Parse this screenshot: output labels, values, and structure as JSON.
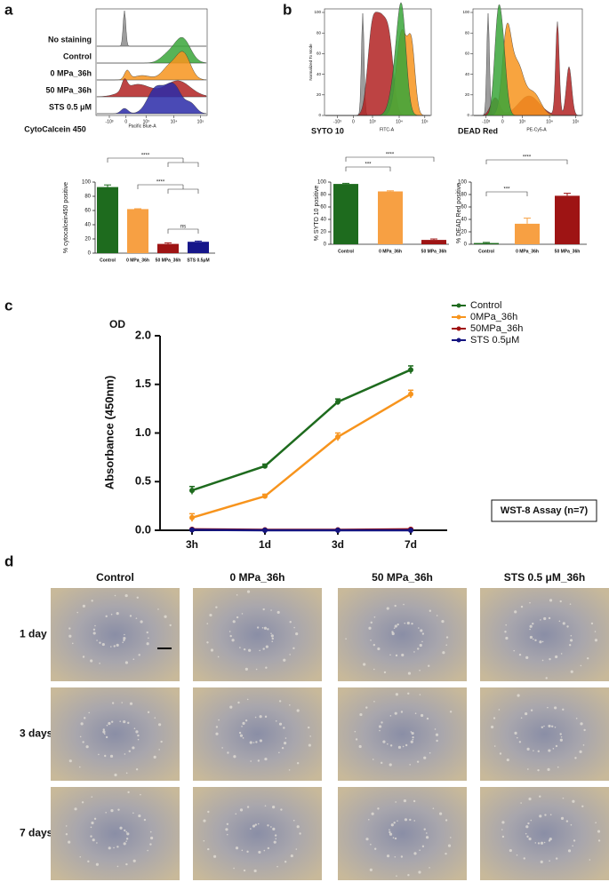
{
  "panel_labels": [
    "a",
    "b",
    "c",
    "d"
  ],
  "flow_plots": [
    {
      "marker": "CytoCalcein 450",
      "x_label": "Pacific Blue-A",
      "xticks": [
        "-10³",
        "0",
        "10³",
        "10⁴",
        "10⁵"
      ],
      "rows": [
        "No staining",
        "Control",
        "0 MPa_36h",
        "50 MPa_36h",
        "STS 0.5 μM"
      ]
    },
    {
      "marker": "SYTO 10",
      "x_label": "FITC-A",
      "y_label": "Normalized To Mode",
      "xticks": [
        "-10³",
        "0",
        "10³",
        "10⁴",
        "10⁵"
      ],
      "ylim": [
        0,
        100
      ],
      "yticks": [
        0,
        20,
        40,
        60,
        80,
        100
      ]
    },
    {
      "marker": "DEAD Red",
      "x_label": "PE-Cy5-A",
      "xticks": [
        "-10³",
        "0",
        "10³",
        "10⁴",
        "10⁵"
      ],
      "ylim": [
        0,
        100
      ],
      "yticks": [
        0,
        20,
        40,
        60,
        80,
        100
      ]
    }
  ],
  "chart_data": [
    {
      "type": "bar",
      "y_label": "% cytocalcein450 positive",
      "categories": [
        "Control",
        "0 MPa_36h",
        "50 MPa_36h",
        "STS 0.5μM"
      ],
      "values": [
        93,
        62,
        13,
        16
      ],
      "errors": [
        3,
        0.5,
        1.5,
        1
      ],
      "colors": [
        "#1e6b1e",
        "#f7a043",
        "#9e1414",
        "#16168a"
      ],
      "ylim": [
        0,
        100
      ],
      "yticks": [
        0,
        20,
        40,
        60,
        80,
        100
      ],
      "annotations": [
        "****",
        "****",
        "ns"
      ]
    },
    {
      "type": "bar",
      "y_label": "% SYTO 10 positive",
      "categories": [
        "Control",
        "0 MPa_36h",
        "50 MPa_36h"
      ],
      "values": [
        97,
        85,
        7
      ],
      "errors": [
        1,
        1,
        1.5
      ],
      "colors": [
        "#1e6b1e",
        "#f7a043",
        "#9e1414"
      ],
      "ylim": [
        0,
        100
      ],
      "yticks": [
        0,
        20,
        40,
        60,
        80,
        100
      ],
      "annotations": [
        "***",
        "****"
      ]
    },
    {
      "type": "bar",
      "y_label": "% DEAD Red positive",
      "categories": [
        "Control",
        "0 MPa_36h",
        "50 MPa_36h"
      ],
      "values": [
        2,
        33,
        78
      ],
      "errors": [
        1,
        9,
        4
      ],
      "colors": [
        "#1e6b1e",
        "#f7a043",
        "#9e1414"
      ],
      "ylim": [
        0,
        100
      ],
      "yticks": [
        0,
        20,
        40,
        60,
        80,
        100
      ],
      "annotations": [
        "***",
        "****"
      ]
    },
    {
      "type": "line",
      "y_unit": "OD",
      "y_label": "Absorbance (450nm)",
      "categories": [
        "3h",
        "1d",
        "3d",
        "7d"
      ],
      "series": [
        {
          "name": "Control",
          "color": "#1e6b1e",
          "values": [
            0.41,
            0.66,
            1.32,
            1.65
          ],
          "errors": [
            0.04,
            0.02,
            0.03,
            0.04
          ]
        },
        {
          "name": "0MPa_36h",
          "color": "#f7941d",
          "values": [
            0.13,
            0.35,
            0.96,
            1.4
          ],
          "errors": [
            0.04,
            0.02,
            0.04,
            0.04
          ]
        },
        {
          "name": "50MPa_36h",
          "color": "#a01010",
          "values": [
            0.01,
            0.005,
            0.005,
            0.01
          ],
          "errors": [
            0.005,
            0.005,
            0.005,
            0.005
          ]
        },
        {
          "name": "STS 0.5μM",
          "color": "#141480",
          "values": [
            0.005,
            0,
            0,
            0
          ],
          "errors": [
            0.003,
            0.003,
            0.003,
            0.003
          ]
        }
      ],
      "ylim": [
        0,
        2
      ],
      "yticks": [
        {
          "value": 0,
          "label": "0.0"
        },
        0.5,
        {
          "value": 1,
          "label": "1.0"
        },
        1.5,
        {
          "value": 2,
          "label": "2.0"
        }
      ],
      "legend": "top-right",
      "annotation": "WST-8 Assay (n=7)"
    }
  ],
  "micrographs": {
    "columns": [
      "Control",
      "0 MPa_36h",
      "50 MPa_36h",
      "STS 0.5 μM_36h"
    ],
    "rows": [
      "1 day",
      "3 days",
      "7 days"
    ]
  }
}
